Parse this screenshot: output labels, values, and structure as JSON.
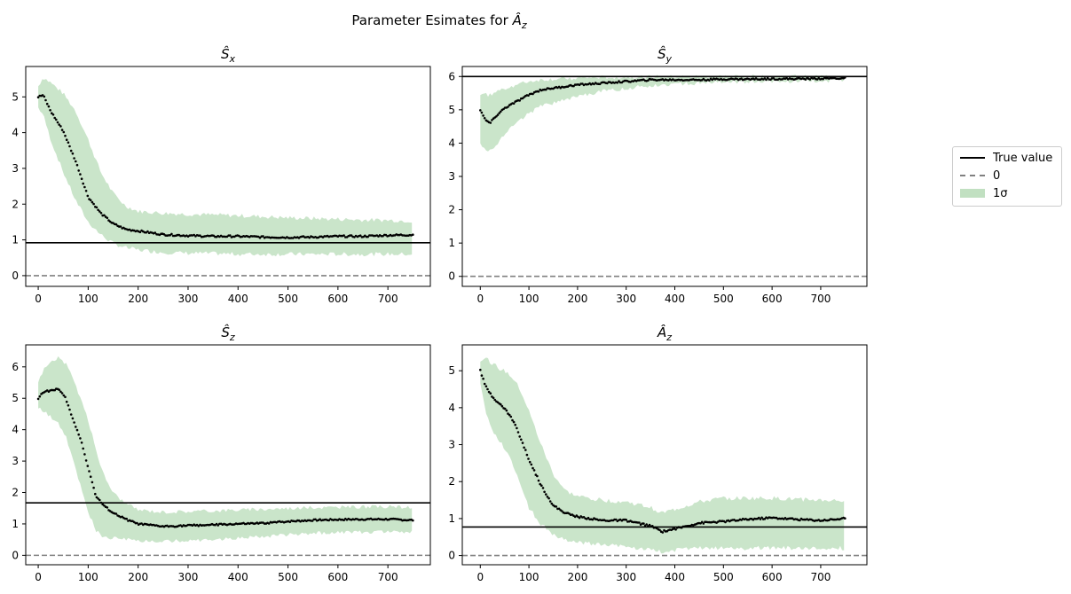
{
  "figure": {
    "suptitle": "Parameter Esimates for Â_z",
    "legend": {
      "placement": "right-outside",
      "entries": [
        "True value",
        "0",
        "1σ"
      ]
    }
  },
  "chart_data": [
    {
      "type": "line",
      "title": "Ŝ_x",
      "xlim": [
        -25,
        785
      ],
      "ylim": [
        -0.3,
        5.85
      ],
      "xticks": [
        0,
        100,
        200,
        300,
        400,
        500,
        600,
        700
      ],
      "yticks": [
        0,
        1,
        2,
        3,
        4,
        5
      ],
      "true_value": 0.92,
      "zero_line": 0,
      "series": [
        {
          "name": "estimate",
          "x": [
            0,
            10,
            25,
            50,
            75,
            100,
            125,
            150,
            175,
            200,
            250,
            300,
            350,
            400,
            450,
            500,
            550,
            600,
            650,
            700,
            750
          ],
          "y": [
            5.0,
            5.05,
            4.6,
            4.05,
            3.2,
            2.2,
            1.75,
            1.45,
            1.3,
            1.25,
            1.15,
            1.12,
            1.1,
            1.1,
            1.08,
            1.07,
            1.08,
            1.1,
            1.1,
            1.13,
            1.14
          ]
        },
        {
          "name": "1σ upper",
          "x": [
            0,
            10,
            25,
            50,
            75,
            100,
            125,
            150,
            175,
            200,
            250,
            300,
            350,
            400,
            450,
            500,
            550,
            600,
            650,
            700,
            750
          ],
          "y": [
            5.3,
            5.55,
            5.4,
            5.1,
            4.6,
            3.8,
            2.9,
            2.3,
            1.95,
            1.8,
            1.75,
            1.72,
            1.7,
            1.68,
            1.65,
            1.62,
            1.6,
            1.58,
            1.56,
            1.55,
            1.53
          ]
        },
        {
          "name": "1σ lower",
          "x": [
            0,
            10,
            25,
            50,
            75,
            100,
            125,
            150,
            175,
            200,
            250,
            300,
            350,
            400,
            450,
            500,
            550,
            600,
            650,
            700,
            750
          ],
          "y": [
            4.7,
            4.5,
            3.8,
            2.9,
            2.1,
            1.5,
            1.15,
            0.9,
            0.78,
            0.72,
            0.65,
            0.63,
            0.62,
            0.6,
            0.6,
            0.6,
            0.6,
            0.6,
            0.6,
            0.6,
            0.6
          ]
        }
      ]
    },
    {
      "type": "line",
      "title": "Ŝ_y",
      "xlim": [
        -37,
        795
      ],
      "ylim": [
        -0.3,
        6.3
      ],
      "xticks": [
        0,
        100,
        200,
        300,
        400,
        500,
        600,
        700
      ],
      "yticks": [
        0,
        1,
        2,
        3,
        4,
        5,
        6
      ],
      "true_value": 6.0,
      "zero_line": 0,
      "series": [
        {
          "name": "estimate",
          "x": [
            0,
            10,
            20,
            35,
            50,
            75,
            100,
            125,
            150,
            200,
            250,
            300,
            350,
            400,
            450,
            500,
            550,
            600,
            650,
            700,
            750
          ],
          "y": [
            5.0,
            4.7,
            4.6,
            4.85,
            5.05,
            5.25,
            5.45,
            5.6,
            5.65,
            5.75,
            5.8,
            5.85,
            5.9,
            5.9,
            5.9,
            5.92,
            5.92,
            5.93,
            5.93,
            5.94,
            5.95
          ]
        },
        {
          "name": "1σ upper",
          "x": [
            0,
            10,
            20,
            35,
            50,
            75,
            100,
            125,
            150,
            200,
            250,
            300,
            350,
            400,
            450,
            500,
            550,
            600,
            650,
            700,
            750
          ],
          "y": [
            5.5,
            5.45,
            5.45,
            5.55,
            5.65,
            5.75,
            5.85,
            5.9,
            5.92,
            5.95,
            5.97,
            5.98,
            5.99,
            5.99,
            5.99,
            6.0,
            6.0,
            6.0,
            6.0,
            6.0,
            6.0
          ]
        },
        {
          "name": "1σ lower",
          "x": [
            0,
            10,
            20,
            35,
            50,
            75,
            100,
            125,
            150,
            200,
            250,
            300,
            350,
            400,
            450,
            500,
            550,
            600,
            650,
            700,
            750
          ],
          "y": [
            4.0,
            3.85,
            3.75,
            4.0,
            4.3,
            4.6,
            4.9,
            5.1,
            5.2,
            5.4,
            5.55,
            5.65,
            5.72,
            5.78,
            5.8,
            5.82,
            5.84,
            5.85,
            5.86,
            5.87,
            5.88
          ]
        }
      ]
    },
    {
      "type": "line",
      "title": "Ŝ_z",
      "xlim": [
        -25,
        785
      ],
      "ylim": [
        -0.3,
        6.7
      ],
      "xticks": [
        0,
        100,
        200,
        300,
        400,
        500,
        600,
        700
      ],
      "yticks": [
        0,
        1,
        2,
        3,
        4,
        5,
        6
      ],
      "true_value": 1.67,
      "zero_line": 0,
      "series": [
        {
          "name": "estimate",
          "x": [
            0,
            10,
            25,
            40,
            55,
            70,
            85,
            100,
            115,
            130,
            150,
            175,
            200,
            250,
            300,
            350,
            400,
            450,
            500,
            550,
            600,
            650,
            700,
            750
          ],
          "y": [
            5.0,
            5.2,
            5.25,
            5.3,
            5.0,
            4.3,
            3.7,
            2.8,
            1.9,
            1.6,
            1.35,
            1.15,
            1.0,
            0.92,
            0.95,
            0.97,
            1.0,
            1.02,
            1.08,
            1.12,
            1.14,
            1.15,
            1.15,
            1.12
          ]
        },
        {
          "name": "1σ upper",
          "x": [
            0,
            10,
            25,
            40,
            55,
            70,
            85,
            100,
            115,
            130,
            150,
            175,
            200,
            250,
            300,
            350,
            400,
            450,
            500,
            550,
            600,
            650,
            700,
            750
          ],
          "y": [
            5.5,
            5.9,
            6.15,
            6.3,
            6.1,
            5.6,
            5.0,
            4.3,
            3.4,
            2.6,
            2.0,
            1.65,
            1.45,
            1.38,
            1.4,
            1.42,
            1.45,
            1.47,
            1.5,
            1.52,
            1.53,
            1.54,
            1.55,
            1.52
          ]
        },
        {
          "name": "1σ lower",
          "x": [
            0,
            10,
            25,
            40,
            55,
            70,
            85,
            100,
            115,
            130,
            150,
            175,
            200,
            250,
            300,
            350,
            400,
            450,
            500,
            550,
            600,
            650,
            700,
            750
          ],
          "y": [
            4.7,
            4.6,
            4.4,
            4.2,
            3.8,
            3.0,
            2.2,
            1.4,
            0.8,
            0.6,
            0.55,
            0.5,
            0.45,
            0.45,
            0.47,
            0.5,
            0.55,
            0.6,
            0.65,
            0.7,
            0.72,
            0.74,
            0.75,
            0.75
          ]
        }
      ]
    },
    {
      "type": "line",
      "title": "Â_z",
      "xlim": [
        -37,
        795
      ],
      "ylim": [
        -0.25,
        5.7
      ],
      "xticks": [
        0,
        100,
        200,
        300,
        400,
        500,
        600,
        700
      ],
      "yticks": [
        0,
        1,
        2,
        3,
        4,
        5
      ],
      "true_value": 0.77,
      "zero_line": 0,
      "series": [
        {
          "name": "estimate",
          "x": [
            0,
            10,
            25,
            40,
            55,
            70,
            85,
            100,
            125,
            150,
            175,
            200,
            250,
            300,
            350,
            375,
            400,
            450,
            500,
            550,
            600,
            650,
            700,
            750
          ],
          "y": [
            5.0,
            4.6,
            4.3,
            4.1,
            3.9,
            3.6,
            3.1,
            2.6,
            1.9,
            1.35,
            1.15,
            1.05,
            0.95,
            0.95,
            0.8,
            0.65,
            0.72,
            0.88,
            0.92,
            0.98,
            1.02,
            0.98,
            0.95,
            1.0
          ]
        },
        {
          "name": "1σ upper",
          "x": [
            0,
            10,
            25,
            40,
            55,
            70,
            85,
            100,
            125,
            150,
            175,
            200,
            250,
            300,
            350,
            375,
            400,
            450,
            500,
            550,
            600,
            650,
            700,
            750
          ],
          "y": [
            5.3,
            5.35,
            5.2,
            5.05,
            4.95,
            4.75,
            4.4,
            3.9,
            3.0,
            2.2,
            1.75,
            1.6,
            1.5,
            1.45,
            1.3,
            1.15,
            1.25,
            1.45,
            1.55,
            1.55,
            1.55,
            1.52,
            1.5,
            1.48
          ]
        },
        {
          "name": "1σ lower",
          "x": [
            0,
            10,
            25,
            40,
            55,
            70,
            85,
            100,
            125,
            150,
            175,
            200,
            250,
            300,
            350,
            375,
            400,
            450,
            500,
            550,
            600,
            650,
            700,
            750
          ],
          "y": [
            4.7,
            3.9,
            3.4,
            3.1,
            2.8,
            2.4,
            1.8,
            1.3,
            0.85,
            0.55,
            0.4,
            0.35,
            0.3,
            0.25,
            0.15,
            0.1,
            0.15,
            0.2,
            0.2,
            0.2,
            0.2,
            0.2,
            0.2,
            0.2
          ]
        }
      ]
    }
  ]
}
